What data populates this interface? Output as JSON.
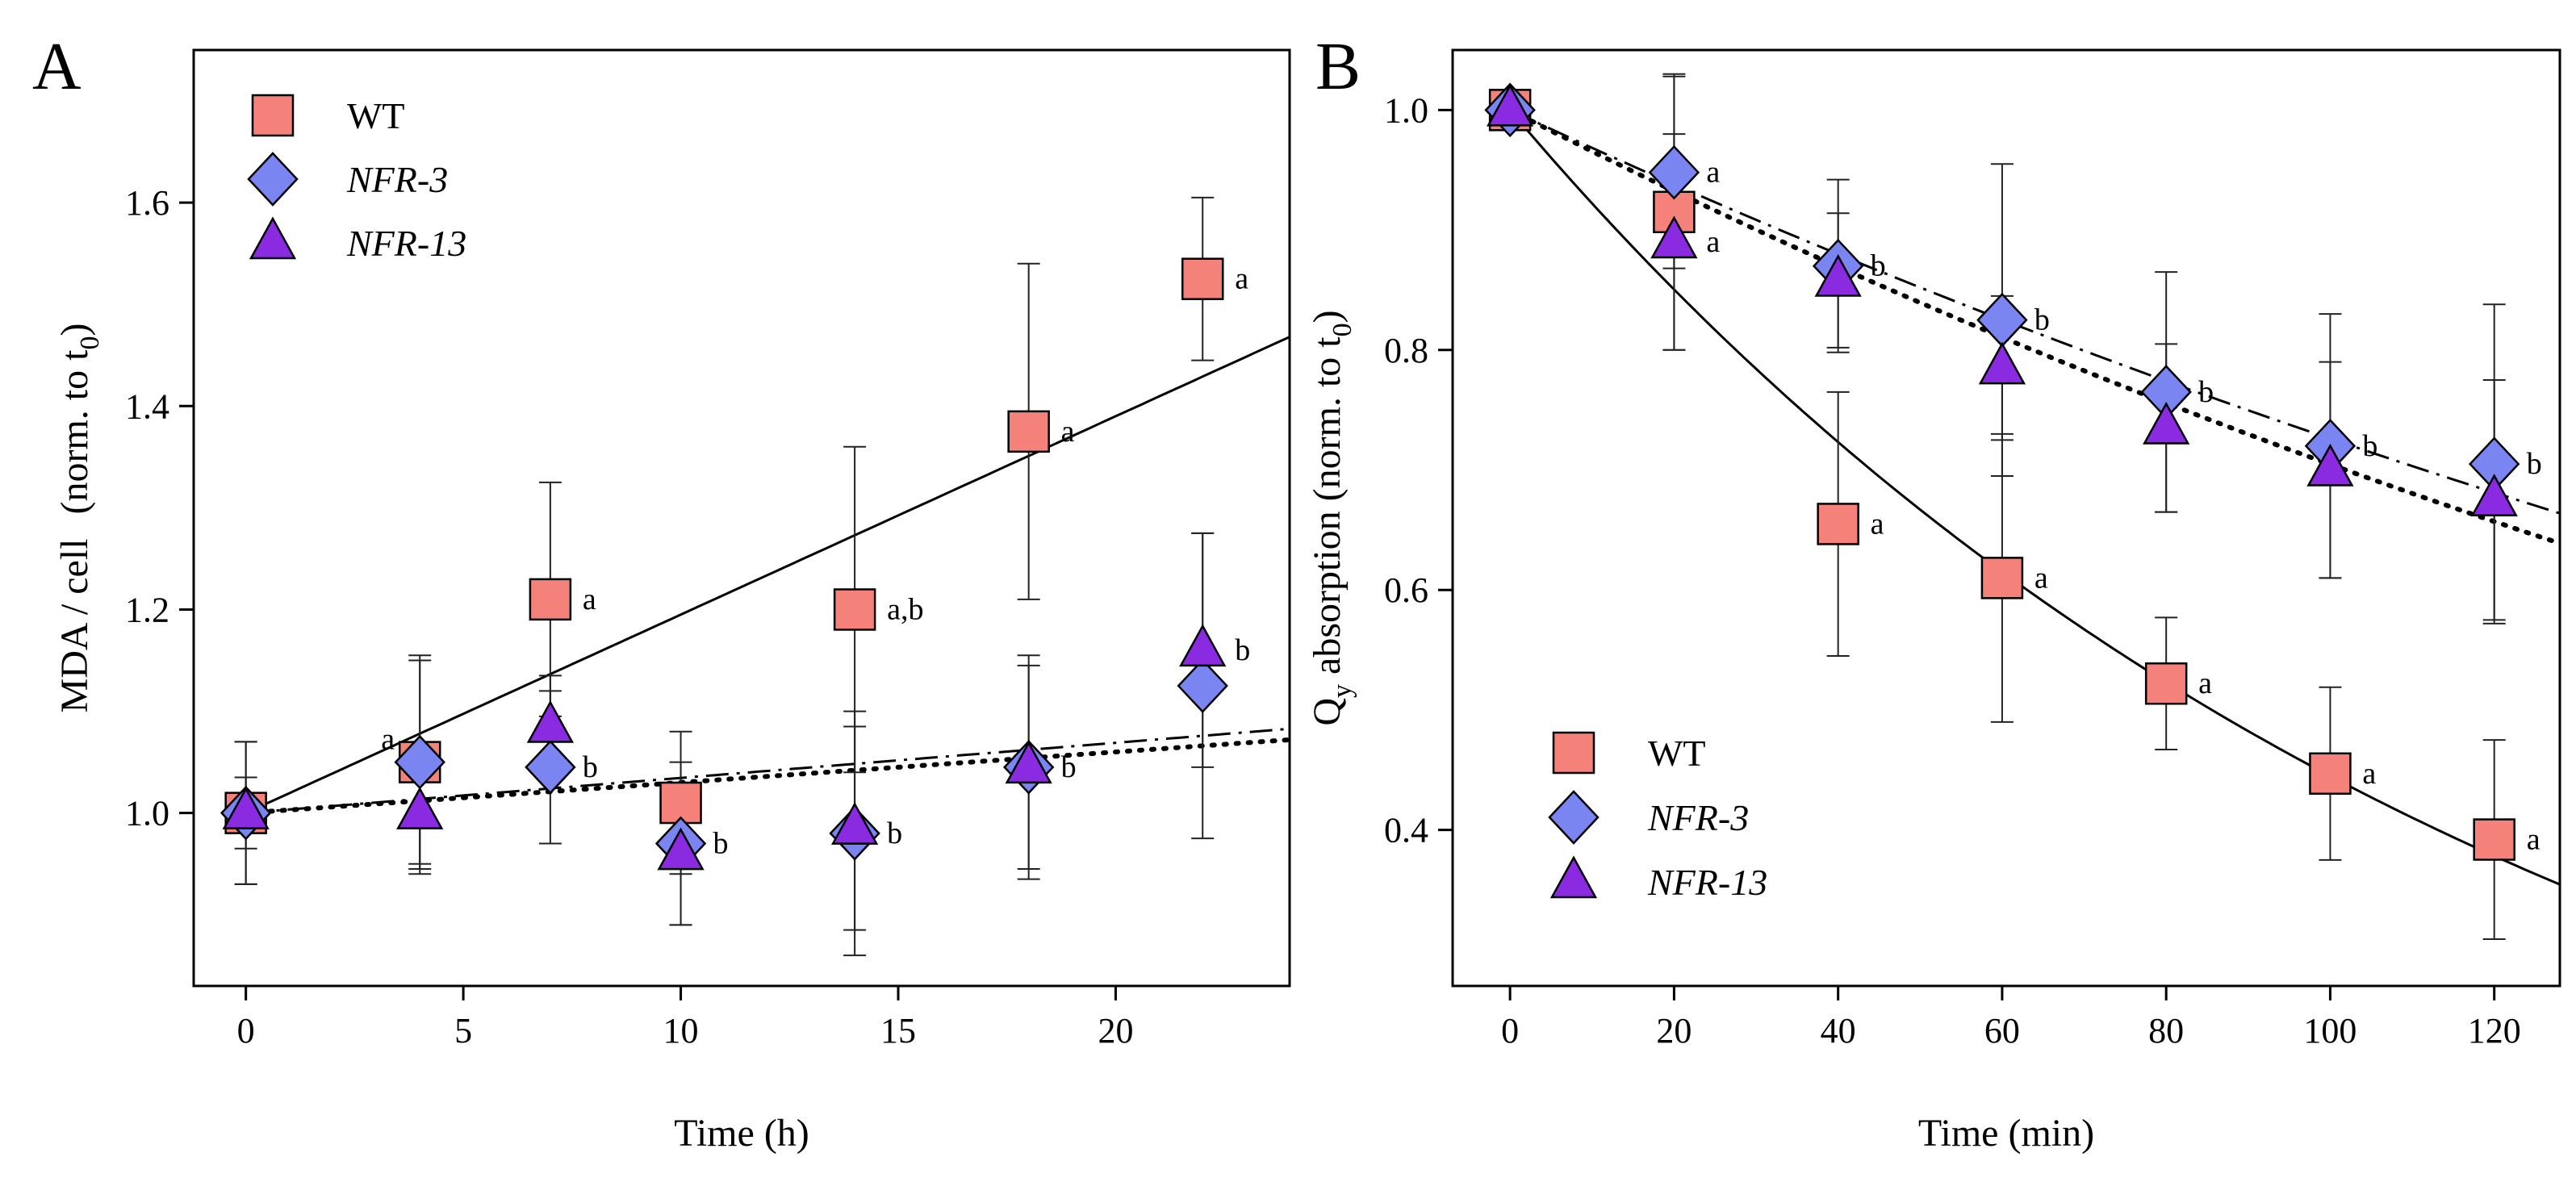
{
  "chart_data": [
    {
      "type": "scatter",
      "panel_label": "A",
      "xlabel": "Time (h)",
      "ylabel_main": "MDA / cell",
      "ylabel_paren_open": "(norm. to t",
      "ylabel_sub": "0",
      "ylabel_paren_close": ")",
      "xlim": [
        -1.2,
        24
      ],
      "ylim": [
        0.83,
        1.75
      ],
      "xticks": [
        0,
        5,
        10,
        15,
        20
      ],
      "yticks": [
        1.0,
        1.2,
        1.4,
        1.6
      ],
      "ytick_labels": [
        "1.0",
        "1.2",
        "1.4",
        "1.6"
      ],
      "legend_position": "top-left",
      "series": [
        {
          "name": "WT",
          "italic": false,
          "marker": "square",
          "color": "#f4827b",
          "x": [
            0,
            4,
            7,
            10,
            14,
            18,
            22
          ],
          "y": [
            1.0,
            1.05,
            1.21,
            1.01,
            1.2,
            1.375,
            1.525
          ],
          "err": [
            0.035,
            0.1,
            0.115,
            0.07,
            0.16,
            0.165,
            0.08
          ],
          "labels": [
            "",
            "a",
            "a",
            "",
            "a,b",
            "a",
            "a"
          ],
          "fit": {
            "kind": "linear",
            "y0": 1.0,
            "slope": 0.0195,
            "style": "solid"
          }
        },
        {
          "name": "NFR-3",
          "italic": true,
          "marker": "diamond",
          "color": "#7b85f2",
          "x": [
            0,
            4,
            7,
            10,
            14,
            18,
            22
          ],
          "y": [
            1.0,
            1.05,
            1.045,
            0.97,
            0.98,
            1.045,
            1.125
          ],
          "err": [
            0.07,
            0.105,
            0.075,
            0.08,
            0.12,
            0.11,
            0.15
          ],
          "labels": [
            "",
            "",
            "b",
            "b",
            "b",
            "b",
            ""
          ],
          "fit": {
            "kind": "linear",
            "y0": 1.0,
            "slope": 0.00345,
            "style": "dashdot"
          }
        },
        {
          "name": "NFR-13",
          "italic": true,
          "marker": "triangle",
          "color": "#8a2be2",
          "x": [
            0,
            4,
            7,
            10,
            14,
            18,
            22
          ],
          "y": [
            1.0,
            1.0,
            1.085,
            0.96,
            0.985,
            1.045,
            1.16
          ],
          "err": [
            0.07,
            0.06,
            0.05,
            0.07,
            0.1,
            0.1,
            0.115
          ],
          "labels": [
            "",
            "",
            "",
            "",
            "",
            "",
            "b"
          ],
          "fit": {
            "kind": "linear",
            "y0": 1.0,
            "slope": 0.003,
            "style": "dotted"
          }
        }
      ]
    },
    {
      "type": "scatter",
      "panel_label": "B",
      "xlabel": "Time (min)",
      "ylabel_main": "Q",
      "ylabel_sub1": "y",
      "ylabel_mid": " absorption (norm. to t",
      "ylabel_sub2": "0",
      "ylabel_close": ")",
      "xlim": [
        -7,
        128
      ],
      "ylim": [
        0.27,
        1.05
      ],
      "xticks": [
        0,
        20,
        40,
        60,
        80,
        100,
        120
      ],
      "yticks": [
        0.4,
        0.6,
        0.8,
        1.0
      ],
      "ytick_labels": [
        "0.4",
        "0.6",
        "0.8",
        "1.0"
      ],
      "legend_position": "bottom-left",
      "series": [
        {
          "name": "WT",
          "italic": false,
          "marker": "square",
          "color": "#f4827b",
          "x": [
            0,
            20,
            40,
            60,
            80,
            100,
            120
          ],
          "y": [
            1.0,
            0.915,
            0.655,
            0.61,
            0.522,
            0.447,
            0.392
          ],
          "err": [
            0.01,
            0.115,
            0.11,
            0.12,
            0.055,
            0.072,
            0.083
          ],
          "labels": [
            "",
            "",
            "a",
            "a",
            "a",
            "a",
            "a"
          ],
          "fit": {
            "kind": "exp",
            "k": 0.0081,
            "style": "solid"
          }
        },
        {
          "name": "NFR-3",
          "italic": true,
          "marker": "diamond",
          "color": "#7b85f2",
          "x": [
            0,
            20,
            40,
            60,
            80,
            100,
            120
          ],
          "y": [
            1.0,
            0.948,
            0.87,
            0.825,
            0.765,
            0.72,
            0.705
          ],
          "err": [
            0.01,
            0.08,
            0.072,
            0.13,
            0.1,
            0.11,
            0.133
          ],
          "labels": [
            "",
            "a",
            "b",
            "b",
            "b",
            "b",
            "b"
          ],
          "fit": {
            "kind": "exp",
            "k": 0.0032,
            "style": "dashdot"
          }
        },
        {
          "name": "NFR-13",
          "italic": true,
          "marker": "triangle",
          "color": "#8a2be2",
          "x": [
            0,
            20,
            40,
            60,
            80,
            100,
            120
          ],
          "y": [
            1.0,
            0.89,
            0.858,
            0.785,
            0.735,
            0.7,
            0.675
          ],
          "err": [
            0.01,
            0.09,
            0.056,
            0.06,
            0.07,
            0.09,
            0.1
          ],
          "labels": [
            "",
            "a",
            "",
            "",
            "",
            "",
            ""
          ],
          "fit": {
            "kind": "exp",
            "k": 0.0035,
            "style": "dotted"
          }
        }
      ]
    }
  ]
}
